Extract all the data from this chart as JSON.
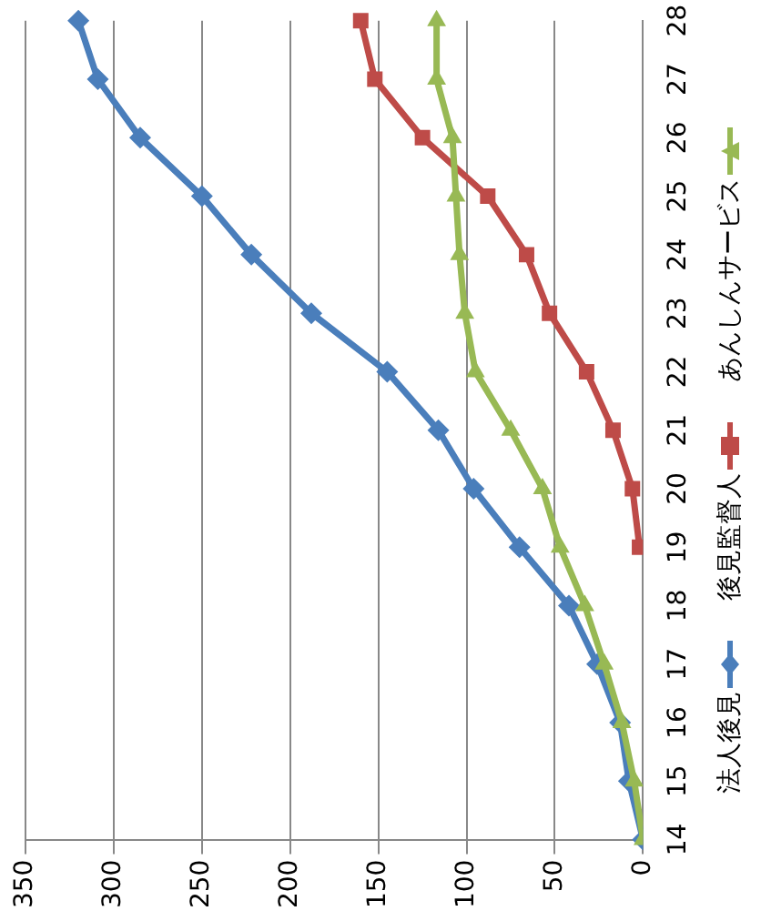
{
  "chart_data": {
    "type": "line",
    "orientation": "horizontal",
    "categories": [
      "28",
      "27",
      "26",
      "25",
      "24",
      "23",
      "22",
      "21",
      "20",
      "19",
      "18",
      "17",
      "16",
      "15",
      "14"
    ],
    "series": [
      {
        "name": "法人後見",
        "color": "#4a7ebb",
        "marker": "diamond",
        "values": [
          320,
          309,
          285,
          250,
          222,
          188,
          145,
          116,
          96,
          70,
          42,
          26,
          13,
          8,
          0
        ]
      },
      {
        "name": "後見監督人",
        "color": "#be4b48",
        "marker": "square",
        "values": [
          160,
          152,
          125,
          88,
          66,
          53,
          32,
          17,
          6,
          2,
          null,
          null,
          null,
          null,
          null
        ]
      },
      {
        "name": "あんしんサービス",
        "color": "#98b954",
        "marker": "triangle",
        "values": [
          117,
          117,
          108,
          106,
          104,
          101,
          95,
          75,
          57,
          47,
          33,
          22,
          12,
          5,
          0
        ]
      }
    ],
    "xlim": [
      350,
      0
    ],
    "xticks": [
      350,
      300,
      250,
      200,
      150,
      100,
      50,
      0
    ],
    "grid": "x",
    "legend": "right"
  }
}
